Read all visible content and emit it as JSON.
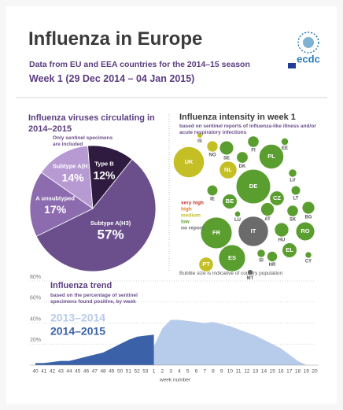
{
  "header": {
    "title": "Influenza in Europe",
    "subtitle": "Data from EU and EEA countries for the 2014–15 season",
    "week": "Week 1 (29 Dec 2014 – 04 Jan 2015)"
  },
  "logo": "ecdc",
  "chart_data": [
    {
      "type": "pie",
      "title": "Influenza viruses circulating in 2014–2015",
      "subtitle": "Only sentinel specimens are included",
      "categories": [
        "Subtype A(H1)",
        "Type B",
        "Subtype A(H3)",
        "A unsubtyped"
      ],
      "values": [
        14,
        12,
        57,
        17
      ],
      "value_labels": [
        "14%",
        "12%",
        "57%",
        "17%"
      ],
      "colors": [
        "#b89ad2",
        "#2e1b3f",
        "#6b4f8c",
        "#8c6cae"
      ]
    },
    {
      "type": "bubble",
      "title": "Influenza intensity in week 1",
      "subtitle": "based on sentinel reports of influenza-like illness and/or acute respiratory infections",
      "categories": [
        "IS",
        "NO",
        "SE",
        "FI",
        "DK",
        "EE",
        "UK",
        "NL",
        "PL",
        "LV",
        "DE",
        "LT",
        "IE",
        "BE",
        "CZ",
        "SK",
        "FR",
        "LU",
        "AT",
        "BG",
        "IT",
        "HU",
        "SI",
        "RO",
        "PT",
        "ES",
        "HR",
        "EL",
        "MT",
        "CY"
      ],
      "sizes": [
        0.33,
        5.1,
        9.7,
        5.4,
        5.6,
        1.3,
        64,
        17,
        38,
        2,
        81,
        3,
        4.6,
        11,
        10.5,
        5.4,
        66,
        0.55,
        8.5,
        7.2,
        60,
        10,
        2,
        20,
        10.4,
        46,
        4.2,
        11,
        0.42,
        0.86
      ],
      "intensity": [
        "medium",
        "medium",
        "low",
        "low",
        "low",
        "low",
        "medium",
        "medium",
        "low",
        "low",
        "low",
        "low",
        "low",
        "low",
        "low",
        "low",
        "low",
        "low",
        "low",
        "low",
        "no report",
        "low",
        "low",
        "low",
        "medium",
        "low",
        "low",
        "low",
        "no report",
        "low"
      ],
      "legend": [
        {
          "name": "very high",
          "color": "#c0392b"
        },
        {
          "name": "high",
          "color": "#e67e22"
        },
        {
          "name": "medium",
          "color": "#c4bf25"
        },
        {
          "name": "low",
          "color": "#5b9e30"
        },
        {
          "name": "no report",
          "color": "#6b6b6b"
        }
      ],
      "note": "Bubble size is indicative of country population"
    },
    {
      "type": "area",
      "title": "Influenza trend",
      "subtitle": "based on the percentage of sentinel specimens found positive, by week",
      "x_label": "week number",
      "categories": [
        40,
        41,
        42,
        43,
        44,
        45,
        46,
        47,
        48,
        49,
        50,
        51,
        52,
        53,
        1,
        2,
        3,
        4,
        5,
        6,
        7,
        8,
        9,
        10,
        11,
        12,
        13,
        14,
        15,
        16,
        17,
        18,
        19,
        20
      ],
      "series": [
        {
          "name": "2013–2014",
          "color": "#b7cbea",
          "values": [
            1,
            1,
            2,
            2,
            2,
            3,
            3,
            4,
            5,
            6,
            8,
            10,
            12,
            15,
            18,
            35,
            43,
            43,
            42,
            41,
            40,
            41,
            39,
            37,
            34,
            31,
            28,
            24,
            20,
            16,
            10,
            4,
            0,
            0
          ]
        },
        {
          "name": "2014–2015",
          "color": "#3b62a8",
          "values": [
            2,
            2,
            3,
            4,
            4,
            6,
            8,
            10,
            12,
            16,
            20,
            24,
            27,
            28,
            29,
            null,
            null,
            null,
            null,
            null,
            null,
            null,
            null,
            null,
            null,
            null,
            null,
            null,
            null,
            null,
            null,
            null,
            null,
            null
          ]
        }
      ],
      "ylim": [
        0,
        80
      ],
      "yticks": [
        {
          "value": 20,
          "label": "20%"
        },
        {
          "value": 40,
          "label": "40%"
        },
        {
          "value": 60,
          "label": "60%"
        },
        {
          "value": 80,
          "label": "80%"
        }
      ],
      "grid": true
    }
  ]
}
